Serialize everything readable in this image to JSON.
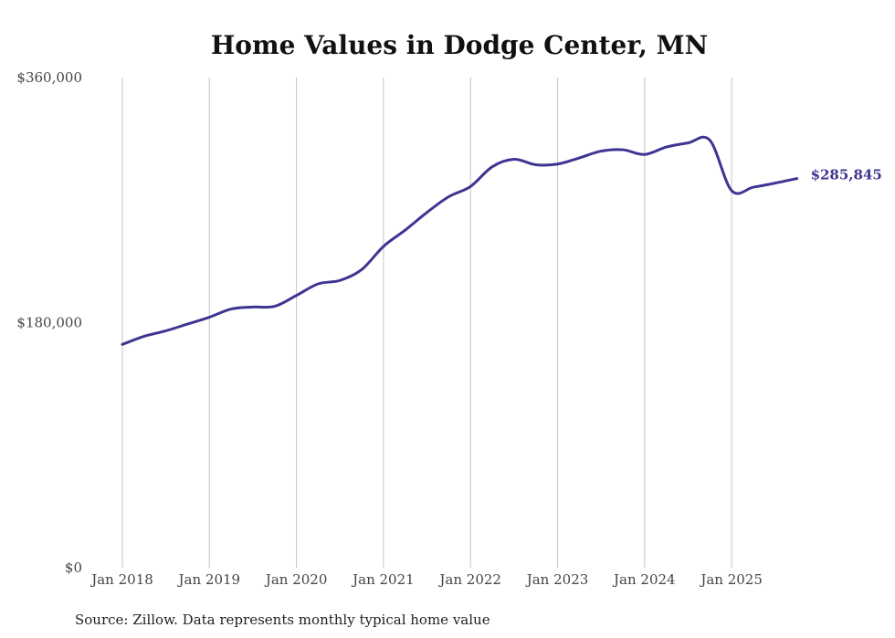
{
  "chart_data": {
    "type": "line",
    "title": "Home Values in Dodge Center, MN",
    "xlabel": "",
    "ylabel": "",
    "ylim": [
      0,
      360000
    ],
    "yticks": [
      0,
      180000,
      360000
    ],
    "ytick_labels": [
      "$0",
      "$180,000",
      "$360,000"
    ],
    "xticks": [
      2018,
      2019,
      2020,
      2021,
      2022,
      2023,
      2024,
      2025
    ],
    "xtick_labels": [
      "Jan 2018",
      "Jan 2019",
      "Jan 2020",
      "Jan 2021",
      "Jan 2022",
      "Jan 2023",
      "Jan 2024",
      "Jan 2025"
    ],
    "xlim": [
      2018,
      2025.75
    ],
    "grid": "vertical",
    "series": [
      {
        "name": "Typical home value",
        "color": "#3d3591",
        "x": [
          2018.0,
          2018.25,
          2018.5,
          2018.75,
          2019.0,
          2019.25,
          2019.5,
          2019.75,
          2020.0,
          2020.25,
          2020.5,
          2020.75,
          2021.0,
          2021.25,
          2021.5,
          2021.75,
          2022.0,
          2022.25,
          2022.5,
          2022.75,
          2023.0,
          2023.25,
          2023.5,
          2023.75,
          2024.0,
          2024.25,
          2024.5,
          2024.75,
          2025.0,
          2025.25,
          2025.5,
          2025.75
        ],
        "values": [
          164000,
          170000,
          174000,
          179000,
          184000,
          190000,
          191500,
          192000,
          200000,
          208500,
          211000,
          219000,
          236000,
          248000,
          261000,
          272500,
          280000,
          294500,
          300000,
          296000,
          296500,
          301000,
          306000,
          307000,
          303500,
          309000,
          312000,
          314000,
          277000,
          279500,
          282500,
          285845
        ]
      }
    ],
    "end_label": "$285,845"
  },
  "source_note": "Source: Zillow. Data represents monthly typical home value"
}
